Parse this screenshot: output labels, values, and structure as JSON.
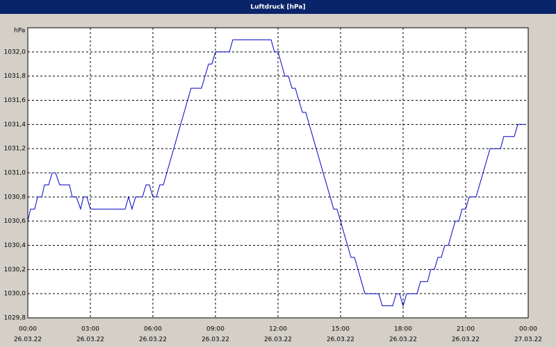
{
  "chart_data": {
    "type": "line",
    "title": "Luftdruck [hPa]",
    "y_label": "hPa",
    "x": [
      0,
      0.13,
      0.33,
      0.47,
      0.67,
      0.8,
      1.0,
      1.17,
      1.33,
      1.53,
      2.0,
      2.13,
      2.33,
      2.53,
      2.67,
      2.83,
      3.0,
      4.67,
      4.83,
      5.0,
      5.17,
      5.5,
      5.67,
      5.83,
      6.0,
      6.17,
      6.33,
      6.5,
      7.83,
      8.33,
      8.67,
      8.83,
      9.0,
      9.67,
      9.83,
      11.67,
      11.83,
      12.0,
      12.33,
      12.5,
      12.67,
      12.83,
      13.17,
      13.33,
      14.67,
      14.83,
      15.5,
      15.67,
      16.17,
      16.83,
      17.0,
      17.5,
      17.67,
      17.83,
      18.0,
      18.17,
      18.67,
      18.83,
      19.17,
      19.33,
      19.5,
      19.67,
      19.83,
      20.0,
      20.17,
      20.5,
      20.67,
      20.83,
      21.0,
      21.17,
      21.5,
      22.17,
      22.67,
      22.83,
      23.33,
      23.5,
      23.83
    ],
    "series": [
      {
        "name": "Luftdruck",
        "color": "#0000c8",
        "values": [
          1030.6,
          1030.7,
          1030.7,
          1030.8,
          1030.8,
          1030.9,
          1030.9,
          1031.0,
          1031.0,
          1030.9,
          1030.9,
          1030.8,
          1030.8,
          1030.7,
          1030.8,
          1030.8,
          1030.7,
          1030.7,
          1030.8,
          1030.7,
          1030.8,
          1030.8,
          1030.9,
          1030.9,
          1030.8,
          1030.8,
          1030.9,
          1030.9,
          1031.7,
          1031.7,
          1031.9,
          1031.9,
          1032.0,
          1032.0,
          1032.1,
          1032.1,
          1032.0,
          1032.0,
          1031.8,
          1031.8,
          1031.7,
          1031.7,
          1031.5,
          1031.5,
          1030.7,
          1030.7,
          1030.3,
          1030.3,
          1030.0,
          1030.0,
          1029.9,
          1029.9,
          1030.0,
          1030.0,
          1029.9,
          1030.0,
          1030.0,
          1030.1,
          1030.1,
          1030.2,
          1030.2,
          1030.3,
          1030.3,
          1030.4,
          1030.4,
          1030.6,
          1030.6,
          1030.7,
          1030.7,
          1030.8,
          1030.8,
          1031.2,
          1031.2,
          1031.3,
          1031.3,
          1031.4,
          1031.4
        ]
      }
    ],
    "xlim": [
      0,
      24
    ],
    "ylim": [
      1029.8,
      1032.2
    ],
    "xticks": [
      {
        "value": 0,
        "label": "00:00",
        "date": "26.03.22"
      },
      {
        "value": 3,
        "label": "03:00",
        "date": "26.03.22"
      },
      {
        "value": 6,
        "label": "06:00",
        "date": "26.03.22"
      },
      {
        "value": 9,
        "label": "09:00",
        "date": "26.03.22"
      },
      {
        "value": 12,
        "label": "12:00",
        "date": "26.03.22"
      },
      {
        "value": 15,
        "label": "15:00",
        "date": "26.03.22"
      },
      {
        "value": 18,
        "label": "18:00",
        "date": "26.03.22"
      },
      {
        "value": 21,
        "label": "21:00",
        "date": "26.03.22"
      },
      {
        "value": 24,
        "label": "00:00",
        "date": "27.03.22"
      }
    ],
    "yticks": [
      {
        "value": 1029.8,
        "label": "1029,8"
      },
      {
        "value": 1030.0,
        "label": "1030,0"
      },
      {
        "value": 1030.2,
        "label": "1030,2"
      },
      {
        "value": 1030.4,
        "label": "1030,4"
      },
      {
        "value": 1030.6,
        "label": "1030,6"
      },
      {
        "value": 1030.8,
        "label": "1030,8"
      },
      {
        "value": 1031.0,
        "label": "1031,0"
      },
      {
        "value": 1031.2,
        "label": "1031,2"
      },
      {
        "value": 1031.4,
        "label": "1031,4"
      },
      {
        "value": 1031.6,
        "label": "1031,6"
      },
      {
        "value": 1031.8,
        "label": "1031,8"
      },
      {
        "value": 1032.0,
        "label": "1032,0"
      }
    ],
    "grid": true
  }
}
